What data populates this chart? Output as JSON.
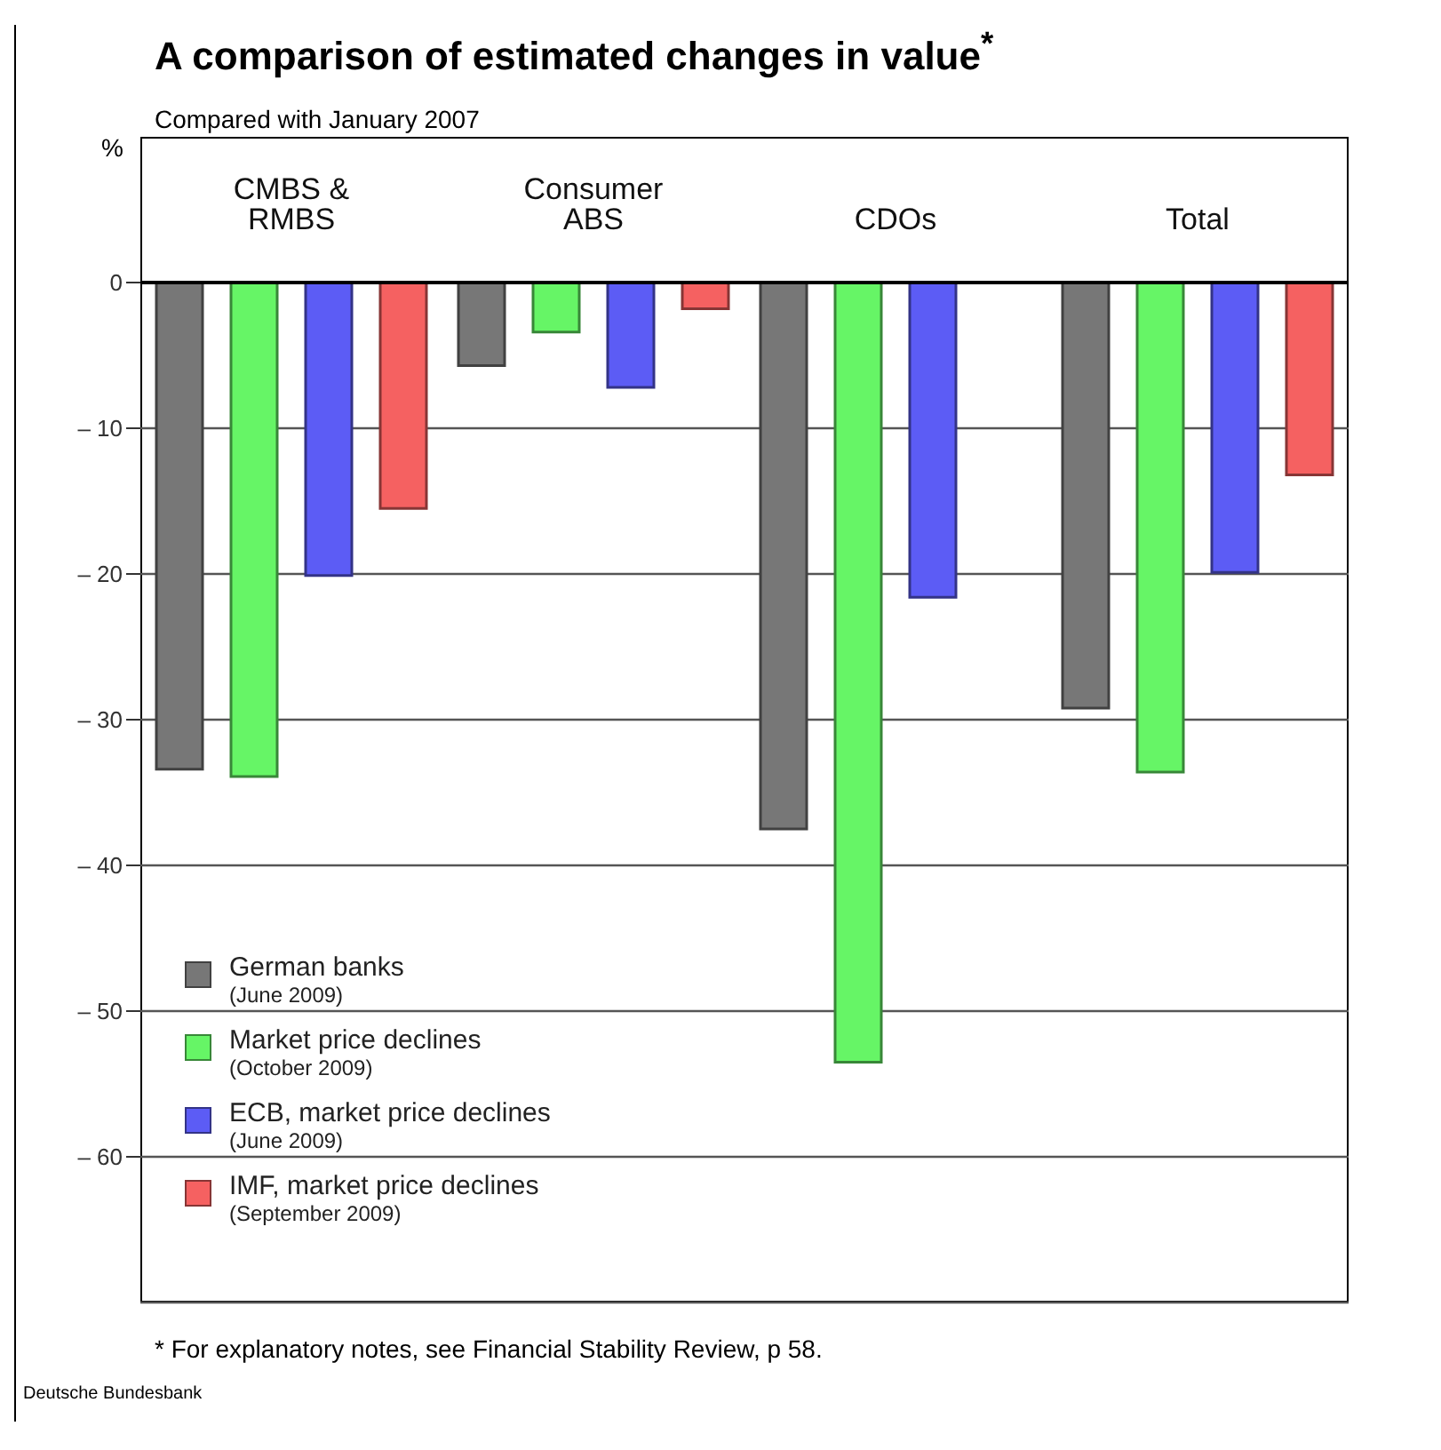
{
  "chart_data": {
    "type": "bar",
    "title": "A comparison of estimated changes in value$^{*}$",
    "subtitle": "Compared with January 2007",
    "ylabel": "%",
    "categories": [
      "CMBS & RMBS",
      "Consumer ABS",
      "CDOs",
      "Total"
    ],
    "series": [
      {
        "name": "German banks\n(June 2009)",
        "color": "#777777",
        "values": [
          -33.4,
          -5.7,
          -37.5,
          -29.2
        ]
      },
      {
        "name": "Market price declines\n(October 2009)",
        "color": "#66f566",
        "values": [
          -33.9,
          -3.4,
          -53.5,
          -33.6
        ]
      },
      {
        "name": "ECB, market price declines\n(June 2009)",
        "color": "#5c5cf5",
        "values": [
          -20.1,
          -7.2,
          -21.6,
          -19.9
        ]
      },
      {
        "name": "IMF, market price declines\n(September 2009)",
        "color": "#f56161",
        "values": [
          -15.5,
          -1.8,
          null,
          -13.2
        ]
      }
    ],
    "ylim": [
      -70,
      0
    ],
    "yticks": [
      0,
      {
        "value": -10,
        "label": "– 10"
      },
      {
        "value": -20,
        "label": "– 20"
      },
      {
        "value": -30,
        "label": "– 30"
      },
      {
        "value": -40,
        "label": "– 40"
      },
      {
        "value": -50,
        "label": "– 50"
      },
      {
        "value": -60,
        "label": "– 60"
      }
    ],
    "grid": "y",
    "legend": "bottom left",
    "annotations": [
      "* For explanatory notes, see Financial Stability Review, p 58.",
      "Deutsche Bundesbank"
    ]
  }
}
